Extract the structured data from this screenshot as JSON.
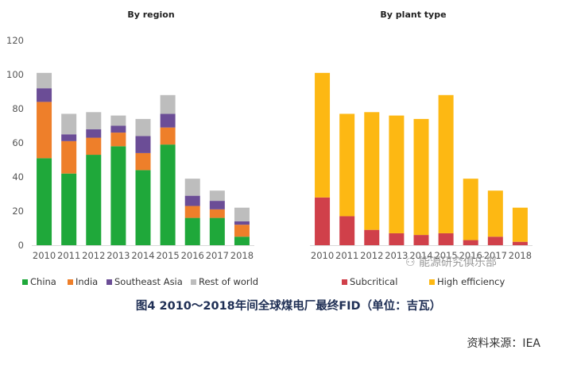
{
  "chart_data": [
    {
      "type": "bar",
      "stacked": true,
      "title": "By region",
      "categories": [
        "2010",
        "2011",
        "2012",
        "2013",
        "2014",
        "2015",
        "2016",
        "2017",
        "2018"
      ],
      "yticks": [
        0,
        20,
        40,
        60,
        80,
        100,
        120
      ],
      "ylim": [
        0,
        120
      ],
      "series": [
        {
          "name": "China",
          "color": "#1fa83a",
          "values": [
            51,
            42,
            53,
            58,
            44,
            59,
            16,
            16,
            5
          ]
        },
        {
          "name": "India",
          "color": "#ee7f2a",
          "values": [
            33,
            19,
            10,
            8,
            10,
            10,
            7,
            5,
            7
          ]
        },
        {
          "name": "Southeast Asia",
          "color": "#6b4d96",
          "values": [
            8,
            4,
            5,
            4,
            10,
            8,
            6,
            5,
            2
          ]
        },
        {
          "name": "Rest of world",
          "color": "#bdbdbd",
          "values": [
            9,
            12,
            10,
            6,
            10,
            11,
            10,
            6,
            8
          ]
        }
      ],
      "legend": "bottom"
    },
    {
      "type": "bar",
      "stacked": true,
      "title": "By plant type",
      "categories": [
        "2010",
        "2011",
        "2012",
        "2013",
        "2014",
        "2015",
        "2016",
        "2017",
        "2018"
      ],
      "ylim": [
        0,
        120
      ],
      "series": [
        {
          "name": "Subcritical",
          "color": "#d0404a",
          "values": [
            28,
            17,
            9,
            7,
            6,
            7,
            3,
            5,
            2
          ]
        },
        {
          "name": "High efficiency",
          "color": "#fdb813",
          "values": [
            73,
            60,
            69,
            69,
            68,
            81,
            36,
            27,
            20
          ]
        }
      ],
      "legend": "bottom"
    }
  ],
  "caption": "图4   2010～2018年间全球煤电厂最终FID（单位：吉瓦）",
  "source": "资料来源：IEA",
  "watermark": "能源研究俱乐部"
}
